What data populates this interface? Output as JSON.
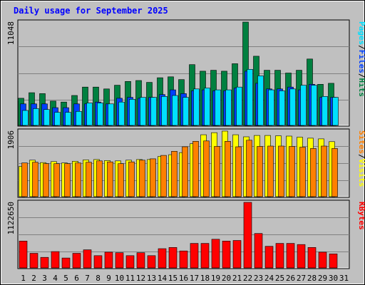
{
  "chart_data": {
    "title": "Daily usage for September 2025",
    "type": "bar",
    "days": [
      "1",
      "2",
      "3",
      "4",
      "5",
      "6",
      "7",
      "8",
      "9",
      "10",
      "11",
      "12",
      "13",
      "14",
      "15",
      "16",
      "17",
      "18",
      "19",
      "20",
      "21",
      "22",
      "23",
      "24",
      "25",
      "26",
      "27",
      "28",
      "29",
      "30",
      "31"
    ],
    "weekend_days": [
      "6",
      "7",
      "13",
      "14",
      "20",
      "21",
      "27",
      "28"
    ],
    "colors": {
      "hits": "#008040",
      "files": "#0040ff",
      "pages": "#00e0ff",
      "visits": "#ffff00",
      "sites": "#ff8000",
      "kbytes": "#ff0000",
      "weekend_tick": "#00805c"
    },
    "panels": [
      {
        "id": "hits-files-pages",
        "ymax_label": "11048",
        "ymax": 11048,
        "legend": [
          {
            "text": "Pages",
            "color": "#00e0ff"
          },
          {
            "text": "/",
            "color": "#000000"
          },
          {
            "text": "Files",
            "color": "#0040ff"
          },
          {
            "text": "/",
            "color": "#000000"
          },
          {
            "text": "Hits",
            "color": "#008040"
          }
        ],
        "series": [
          {
            "name": "Hits",
            "values": [
              2900,
              3500,
              3400,
              2600,
              2500,
              3200,
              4100,
              4100,
              3900,
              4300,
              4700,
              4800,
              4600,
              5100,
              5200,
              4900,
              6500,
              5800,
              5900,
              5800,
              6600,
              11048,
              7400,
              5900,
              5900,
              5600,
              5900,
              7100,
              4400,
              4500,
              null
            ]
          },
          {
            "name": "Files",
            "values": [
              2300,
              2300,
              2300,
              1900,
              1900,
              2300,
              2300,
              2500,
              2300,
              2900,
              3000,
              2900,
              3000,
              3300,
              3800,
              3400,
              3700,
              3800,
              3700,
              3700,
              4000,
              5800,
              4500,
              3900,
              3900,
              4100,
              3800,
              4400,
              3000,
              3000,
              null
            ]
          },
          {
            "name": "Pages",
            "values": [
              1600,
              1800,
              1700,
              1400,
              1400,
              1500,
              2400,
              2400,
              2300,
              2500,
              2800,
              3000,
              3000,
              3100,
              3200,
              3000,
              3900,
              4000,
              3800,
              3800,
              4100,
              6000,
              5300,
              3800,
              3700,
              3900,
              4300,
              4300,
              3100,
              3000,
              null
            ]
          }
        ]
      },
      {
        "id": "visits-sites",
        "ymax_label": "1906",
        "ymax": 1906,
        "legend": [
          {
            "text": "Sites",
            "color": "#ff8000"
          },
          {
            "text": "/",
            "color": "#000000"
          },
          {
            "text": "Visits",
            "color": "#ffff00"
          }
        ],
        "series": [
          {
            "name": "Visits",
            "values": [
              880,
              1060,
              990,
              1020,
              980,
              1030,
              1070,
              1080,
              1050,
              1040,
              1060,
              1080,
              1080,
              1170,
              1220,
              1280,
              1540,
              1800,
              1860,
              1906,
              1800,
              1740,
              1780,
              1780,
              1770,
              1760,
              1730,
              1700,
              1680,
              1600,
              null
            ]
          },
          {
            "name": "Sites",
            "values": [
              980,
              1000,
              960,
              960,
              960,
              980,
              1000,
              1040,
              1010,
              960,
              1010,
              1060,
              1100,
              1200,
              1320,
              1450,
              1610,
              1620,
              1460,
              1610,
              1450,
              1640,
              1460,
              1470,
              1470,
              1460,
              1440,
              1400,
              1470,
              1400,
              null
            ]
          }
        ]
      },
      {
        "id": "kbytes",
        "ymax_label": "1122650",
        "ymax": 1122650,
        "legend": [
          {
            "text": "KBytes",
            "color": "#ff0000"
          }
        ],
        "series": [
          {
            "name": "KBytes",
            "values": [
              460000,
              250000,
              180000,
              280000,
              170000,
              250000,
              310000,
              210000,
              270000,
              260000,
              210000,
              260000,
              210000,
              330000,
              350000,
              290000,
              420000,
              420000,
              490000,
              460000,
              470000,
              1122650,
              590000,
              370000,
              420000,
              420000,
              400000,
              350000,
              270000,
              240000,
              null
            ]
          }
        ]
      }
    ]
  }
}
